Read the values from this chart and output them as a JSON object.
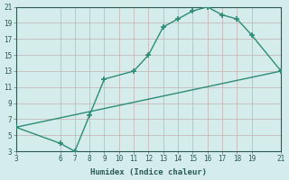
{
  "xlabel": "Humidex (Indice chaleur)",
  "line1_x": [
    3,
    6,
    7,
    8,
    9,
    11,
    12,
    13,
    14,
    15,
    16,
    17,
    18,
    19,
    21
  ],
  "line1_y": [
    6,
    4,
    3,
    7.5,
    12,
    13,
    15,
    18.5,
    19.5,
    20.5,
    21,
    20,
    19.5,
    17.5,
    13
  ],
  "line2_x": [
    3,
    21
  ],
  "line2_y": [
    6,
    13
  ],
  "line_color": "#2e8b74",
  "bg_color": "#d4edec",
  "grid_color": "#c8b8b8",
  "xlim": [
    3,
    21
  ],
  "ylim": [
    3,
    21
  ],
  "xticks": [
    3,
    6,
    7,
    8,
    9,
    10,
    11,
    12,
    13,
    14,
    15,
    16,
    17,
    18,
    19,
    21
  ],
  "yticks": [
    3,
    5,
    7,
    9,
    11,
    13,
    15,
    17,
    19,
    21
  ],
  "tick_fontsize": 5.5,
  "xlabel_fontsize": 6.5
}
